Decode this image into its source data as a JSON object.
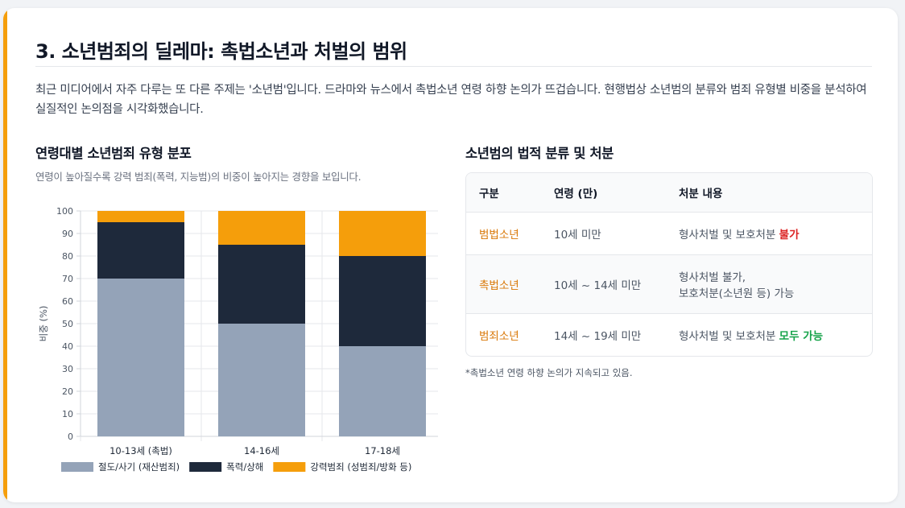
{
  "section": {
    "title": "3. 소년범죄의 딜레마: 촉법소년과 처벌의 범위",
    "intro": "최근 미디어에서 자주 다루는 또 다른 주제는 '소년범'입니다. 드라마와 뉴스에서 촉법소년 연령 하향 논의가 뜨겁습니다. 현행법상 소년범의 분류와 범죄 유형별 비중을 분석하여 실질적인 논의점을 시각화했습니다."
  },
  "chart_panel": {
    "title": "연령대별 소년범죄 유형 분포",
    "subtitle": "연령이 높아질수록 강력 범죄(폭력, 지능범)의 비중이 높아지는 경향을 보입니다."
  },
  "chart_data": {
    "type": "bar",
    "stacked": true,
    "categories": [
      "10-13세 (촉법)",
      "14-16세",
      "17-18세"
    ],
    "series": [
      {
        "name": "절도/사기 (재산범죄)",
        "color": "#94a3b8",
        "values": [
          70,
          50,
          40
        ]
      },
      {
        "name": "폭력/상해",
        "color": "#1e293b",
        "values": [
          25,
          35,
          40
        ]
      },
      {
        "name": "강력범죄 (성범죄/방화 등)",
        "color": "#f59e0b",
        "values": [
          5,
          15,
          20
        ]
      }
    ],
    "ylabel": "비중 (%)",
    "ylim": [
      0,
      100
    ],
    "yticks": [
      0,
      10,
      20,
      30,
      40,
      50,
      60,
      70,
      80,
      90,
      100
    ],
    "grid": true,
    "legend": "bottom"
  },
  "table_panel": {
    "title": "소년범의 법적 분류 및 처분",
    "headers": [
      "구분",
      "연령 (만)",
      "처분 내용"
    ],
    "rows": [
      {
        "category": "범법소년",
        "age": "10세 미만",
        "disposition": "형사처벌 및 보호처분",
        "disposition_em": "불가"
      },
      {
        "category": "촉법소년",
        "age": "10세 ~ 14세 미만",
        "disposition_line1": "형사처벌 불가,",
        "disposition_line2": "보호처분(소년원 등) 가능"
      },
      {
        "category": "범죄소년",
        "age": "14세 ~ 19세 미만",
        "disposition": "형사처벌 및 보호처분",
        "disposition_em": "모두 가능"
      }
    ],
    "footnote": "*촉법소년 연령 하향 논의가 지속되고 있음."
  }
}
